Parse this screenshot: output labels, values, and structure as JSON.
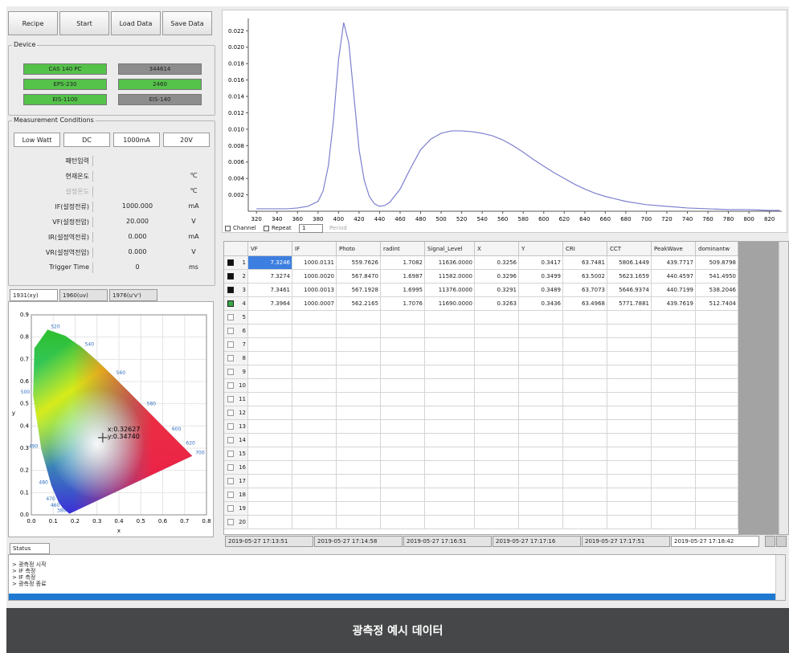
{
  "toolbar": [
    "Recipe",
    "Start",
    "Load Data",
    "Save Data"
  ],
  "device": {
    "title": "Device",
    "buttons": [
      {
        "label": "CAS 140 PC",
        "state": "on"
      },
      {
        "label": "344614",
        "state": "off"
      },
      {
        "label": "EPS-230",
        "state": "on"
      },
      {
        "label": "2460",
        "state": "on"
      },
      {
        "label": "EIS-1100",
        "state": "on"
      },
      {
        "label": "EIS-140",
        "state": "off"
      }
    ]
  },
  "measurement": {
    "title": "Measurement Conditions",
    "modes": [
      "Low Watt",
      "DC",
      "1000mA",
      "20V"
    ],
    "rows": [
      {
        "label": "패턴입력"
      },
      {
        "label": "현재온도",
        "unit": "℃"
      },
      {
        "label": "설정온도",
        "unit": "℃",
        "disabled": true
      },
      {
        "label": "IF(설정전류)",
        "value": "1000.000",
        "unit": "mA"
      },
      {
        "label": "VF(설정전압)",
        "value": "20.000",
        "unit": "V"
      },
      {
        "label": "IR(설정역전류)",
        "value": "0.000",
        "unit": "mA"
      },
      {
        "label": "VR(설정역전압)",
        "value": "0.000",
        "unit": "V"
      },
      {
        "label": "Trigger Time",
        "value": "0",
        "unit": "ms"
      }
    ]
  },
  "cie": {
    "tabs": [
      "1931(xy)",
      "1960(uv)",
      "1976(u'v')"
    ],
    "xlabel": "x",
    "ylabel": "y",
    "xlim": [
      0,
      0.8
    ],
    "ylim": [
      0,
      0.9
    ],
    "xticks": [
      {
        "value": 0,
        "label": "0.0"
      },
      0.1,
      0.2,
      0.3,
      0.4,
      0.5,
      0.6,
      0.7,
      {
        "value": 0.8,
        "label": "0.8"
      }
    ],
    "yticks": [
      {
        "value": 0,
        "label": "0.0"
      },
      0.1,
      0.2,
      0.3,
      0.4,
      0.5,
      0.6,
      0.7,
      0.8,
      0.9
    ],
    "wavelengths": [
      "380",
      "460",
      "470",
      "480",
      "490",
      "500",
      "520",
      "540",
      "560",
      "580",
      "600",
      "620",
      "700"
    ],
    "point": {
      "x": 0.32627,
      "y": 0.3474,
      "x_label": "x:0.32627",
      "y_label": "y:0.34740"
    }
  },
  "chart_data": {
    "type": "line",
    "color": "#7d80cf",
    "x": [
      320,
      330,
      340,
      350,
      360,
      370,
      380,
      385,
      390,
      395,
      400,
      405,
      410,
      415,
      420,
      425,
      430,
      435,
      440,
      445,
      450,
      460,
      470,
      480,
      490,
      500,
      510,
      520,
      530,
      540,
      550,
      560,
      570,
      580,
      590,
      600,
      610,
      620,
      630,
      640,
      650,
      660,
      670,
      680,
      690,
      700,
      720,
      740,
      760,
      780,
      800,
      820,
      830
    ],
    "values": [
      0.0003,
      0.0003,
      0.0003,
      0.0003,
      0.0004,
      0.0006,
      0.0012,
      0.0025,
      0.0055,
      0.011,
      0.0185,
      0.023,
      0.0205,
      0.014,
      0.0075,
      0.0038,
      0.0018,
      0.0009,
      0.0006,
      0.0007,
      0.0011,
      0.0027,
      0.0052,
      0.0075,
      0.0088,
      0.0095,
      0.0098,
      0.0098,
      0.0097,
      0.0095,
      0.0092,
      0.0087,
      0.008,
      0.0072,
      0.0063,
      0.0055,
      0.0047,
      0.004,
      0.0033,
      0.0027,
      0.0022,
      0.0018,
      0.0015,
      0.0012,
      0.001,
      0.0008,
      0.0006,
      0.0004,
      0.0003,
      0.0002,
      0.0002,
      0.0001,
      0.0001
    ],
    "xlim": [
      312,
      832
    ],
    "ylim": [
      0,
      0.0235
    ],
    "xticks": [
      320,
      340,
      360,
      380,
      400,
      420,
      440,
      460,
      480,
      500,
      520,
      540,
      560,
      580,
      600,
      620,
      640,
      660,
      680,
      700,
      720,
      740,
      760,
      780,
      800,
      820
    ],
    "yticks": [
      0.002,
      0.004,
      0.006,
      0.008,
      {
        "value": 0.01,
        "label": "0.010"
      },
      0.012,
      0.014,
      0.016,
      0.018,
      {
        "value": 0.02,
        "label": "0.020"
      },
      0.022
    ]
  },
  "controls": {
    "channel": "Channel",
    "repeat": "Repeat",
    "repeat_value": "1",
    "period": "Period"
  },
  "table": {
    "header": [
      "VF",
      "IF",
      "Photo",
      "radint",
      "Signal_Level",
      "X",
      "Y",
      "CRI",
      "CCT",
      "PeakWave",
      "dominantw"
    ],
    "row_numbers": [
      "1",
      "2",
      "3",
      "4",
      "5",
      "6",
      "7",
      "8",
      "9",
      "10",
      "11",
      "12",
      "13",
      "14",
      "15",
      "16",
      "17",
      "18",
      "19",
      "20"
    ],
    "markers": [
      "black",
      "black",
      "black",
      "green"
    ],
    "rows": [
      [
        "7.3246",
        "1000.0131",
        "559.7626",
        "1.7082",
        "11636.0000",
        "0.3256",
        "0.3417",
        "63.7481",
        "5806.1449",
        "439.7717",
        "509.8798"
      ],
      [
        "7.3274",
        "1000.0020",
        "567.8470",
        "1.6987",
        "11582.0000",
        "0.3296",
        "0.3499",
        "63.5002",
        "5623.1659",
        "440.4597",
        "541.4950"
      ],
      [
        "7.3461",
        "1000.0013",
        "567.1928",
        "1.6995",
        "11376.0000",
        "0.3291",
        "0.3489",
        "63.7073",
        "5646.9374",
        "440.7199",
        "538.2046"
      ],
      [
        "7.3964",
        "1000.0007",
        "562.2165",
        "1.7076",
        "11690.0000",
        "0.3263",
        "0.3436",
        "63.4968",
        "5771.7881",
        "439.7619",
        "512.7404"
      ]
    ]
  },
  "data_tabs": [
    "2019-05-27 17:13:51",
    "2019-05-27 17:14:58",
    "2019-05-27 17:16:51",
    "2019-05-27 17:17:16",
    "2019-05-27 17:17:51",
    "2019-05-27 17:18:42"
  ],
  "status": {
    "title": "Status",
    "log": [
      "> 광측정 시작",
      "> IF 측정",
      "> IF 측정",
      "> 광측정 종료"
    ]
  },
  "caption": "광측정 예시 데이터"
}
